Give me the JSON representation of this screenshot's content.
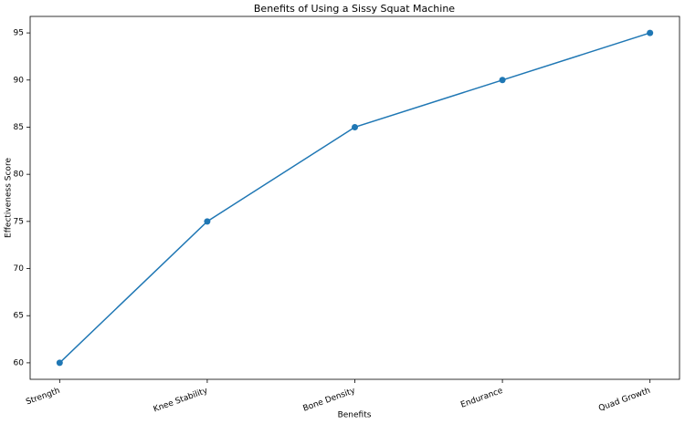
{
  "chart_data": {
    "type": "line",
    "title": "Benefits of Using a Sissy Squat Machine",
    "x_label": "Benefits",
    "y_label": "Effectiveness Score",
    "categories": [
      "Strength",
      "Knee Stability",
      "Bone Density",
      "Endurance",
      "Quad Growth"
    ],
    "values": [
      60,
      75,
      85,
      90,
      95
    ],
    "color": "#1f77b4",
    "ylim": [
      58.25,
      96.75
    ],
    "yticks": [
      60,
      65,
      70,
      75,
      80,
      85,
      90,
      95
    ],
    "grid": false
  }
}
